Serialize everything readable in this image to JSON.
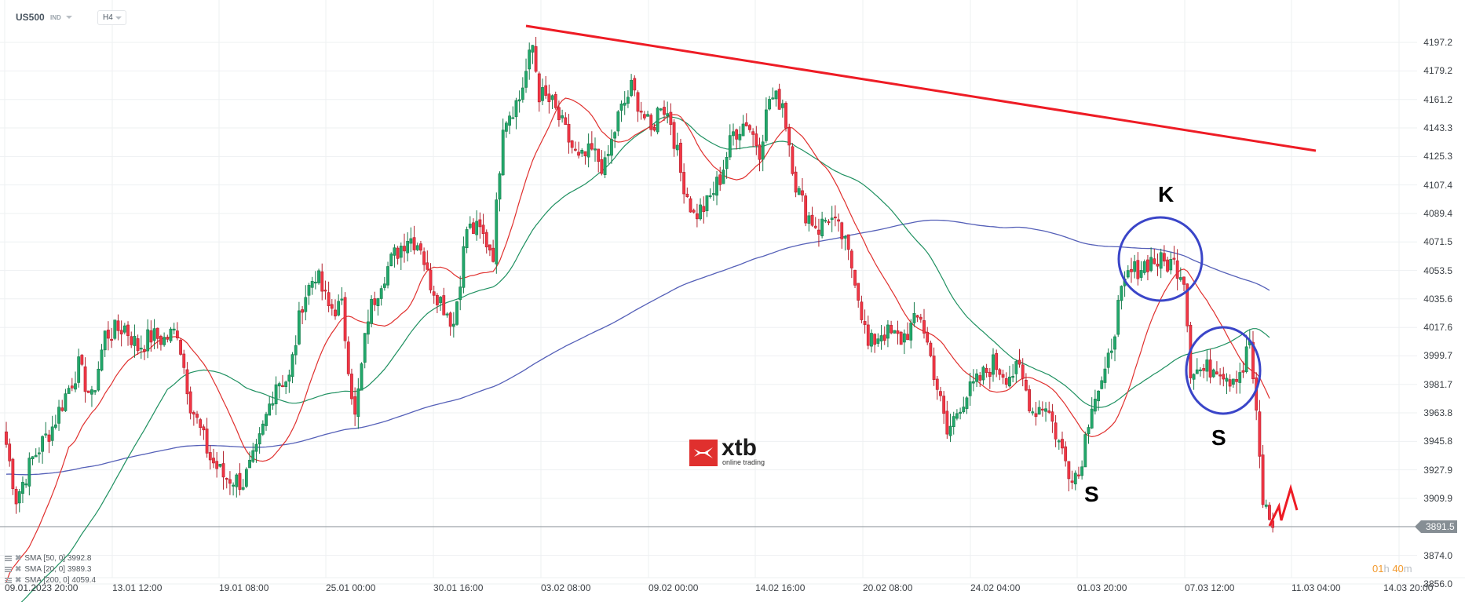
{
  "header": {
    "symbol": "US500",
    "symbol_type": "IND",
    "timeframe": "H4"
  },
  "price_axis": {
    "labels": [
      "4197.2",
      "4179.2",
      "4161.2",
      "4143.3",
      "4125.3",
      "4107.4",
      "4089.4",
      "4071.5",
      "4053.5",
      "4035.6",
      "4017.6",
      "3999.7",
      "3981.7",
      "3963.8",
      "3945.8",
      "3927.9",
      "3909.9",
      "3874.0",
      "3856.0"
    ],
    "current_price": "3891.5"
  },
  "time_axis": {
    "labels": [
      "09.01.2023  20:00",
      "13.01  12:00",
      "19.01  08:00",
      "25.01  00:00",
      "30.01  16:00",
      "03.02  08:00",
      "09.02  00:00",
      "14.02  16:00",
      "20.02  08:00",
      "24.02  04:00",
      "01.03  20:00",
      "07.03  12:00",
      "11.03  04:00",
      "14.03  20:00"
    ]
  },
  "countdown": {
    "hours": "01",
    "h_unit": "h",
    "minutes": "40",
    "m_unit": "m"
  },
  "indicators": [
    {
      "label": "SMA  [50,  0] 3992.8"
    },
    {
      "label": "SMA  [20,  0] 3989.3"
    },
    {
      "label": "SMA  [200,  0] 4059.4"
    }
  ],
  "annotations": {
    "k_label": "K",
    "s_left_label": "S",
    "s_right_label": "S"
  },
  "logo": {
    "brand": "xtb",
    "tagline": "online trading"
  },
  "colors": {
    "bull": "#22a86b",
    "bull_edge": "#157a4a",
    "bear": "#f23645",
    "bear_edge": "#b2202c",
    "sma20": "#e0302e",
    "sma50": "#1e9060",
    "sma200": "#5560b8",
    "trendline": "#ee1c25",
    "circle": "#3a45c8",
    "grid": "#eef0f2",
    "price_line": "#868e94"
  },
  "chart_data": {
    "type": "candlestick",
    "title": "US500 H4",
    "xlabel": "",
    "ylabel": "",
    "ylim": [
      3856.0,
      4197.2
    ],
    "grid": true,
    "legend_position": "bottom-left",
    "current_price": 3891.5,
    "waypoints_close": [
      [
        0,
        3944
      ],
      [
        3,
        3910
      ],
      [
        8,
        3935
      ],
      [
        14,
        3955
      ],
      [
        18,
        3975
      ],
      [
        22,
        3993
      ],
      [
        26,
        3972
      ],
      [
        30,
        4013
      ],
      [
        36,
        4018
      ],
      [
        40,
        4005
      ],
      [
        44,
        4012
      ],
      [
        48,
        4010
      ],
      [
        52,
        4016
      ],
      [
        56,
        3970
      ],
      [
        62,
        3935
      ],
      [
        66,
        3924
      ],
      [
        72,
        3920
      ],
      [
        76,
        3938
      ],
      [
        82,
        3984
      ],
      [
        86,
        3985
      ],
      [
        90,
        4034
      ],
      [
        94,
        4052
      ],
      [
        98,
        4030
      ],
      [
        102,
        4030
      ],
      [
        106,
        3960
      ],
      [
        110,
        4025
      ],
      [
        114,
        4048
      ],
      [
        118,
        4063
      ],
      [
        122,
        4075
      ],
      [
        126,
        4070
      ],
      [
        128,
        4050
      ],
      [
        132,
        4035
      ],
      [
        136,
        4020
      ],
      [
        140,
        4080
      ],
      [
        144,
        4078
      ],
      [
        148,
        4065
      ],
      [
        151,
        4148
      ],
      [
        156,
        4162
      ],
      [
        160,
        4195
      ],
      [
        162,
        4165
      ],
      [
        166,
        4158
      ],
      [
        170,
        4140
      ],
      [
        174,
        4122
      ],
      [
        178,
        4128
      ],
      [
        182,
        4118
      ],
      [
        186,
        4150
      ],
      [
        190,
        4168
      ],
      [
        192,
        4160
      ],
      [
        196,
        4140
      ],
      [
        199,
        4160
      ],
      [
        202,
        4148
      ],
      [
        205,
        4115
      ],
      [
        209,
        4088
      ],
      [
        213,
        4095
      ],
      [
        217,
        4112
      ],
      [
        221,
        4140
      ],
      [
        225,
        4148
      ],
      [
        229,
        4130
      ],
      [
        232,
        4162
      ],
      [
        236,
        4160
      ],
      [
        240,
        4108
      ],
      [
        243,
        4090
      ],
      [
        247,
        4080
      ],
      [
        250,
        4088
      ],
      [
        254,
        4075
      ],
      [
        258,
        4050
      ],
      [
        262,
        4005
      ],
      [
        266,
        4015
      ],
      [
        272,
        4010
      ],
      [
        278,
        4025
      ],
      [
        282,
        3990
      ],
      [
        286,
        3950
      ],
      [
        290,
        3970
      ],
      [
        296,
        3985
      ],
      [
        300,
        3995
      ],
      [
        304,
        3988
      ],
      [
        308,
        3990
      ],
      [
        312,
        3965
      ],
      [
        316,
        3970
      ],
      [
        320,
        3945
      ],
      [
        323,
        3928
      ],
      [
        326,
        3925
      ],
      [
        330,
        3972
      ],
      [
        334,
        3985
      ],
      [
        338,
        4030
      ],
      [
        341,
        4050
      ],
      [
        344,
        4055
      ],
      [
        348,
        4060
      ],
      [
        352,
        4058
      ],
      [
        355,
        4058
      ],
      [
        358,
        4050
      ],
      [
        360,
        3992
      ],
      [
        364,
        3990
      ],
      [
        368,
        3994
      ],
      [
        372,
        3986
      ],
      [
        376,
        3992
      ],
      [
        378,
        4010
      ],
      [
        380,
        3960
      ],
      [
        382,
        3908
      ],
      [
        385,
        3891.5
      ]
    ],
    "sma_values_last": {
      "SMA50": 3992.8,
      "SMA20": 3989.3,
      "SMA200": 4059.4
    },
    "trendline": {
      "from": {
        "time_index": 160,
        "price": 4197.2
      },
      "to": {
        "time_index": 325,
        "price": 4128.0
      }
    },
    "annotations": [
      {
        "text": "K",
        "near_price": 4060,
        "shape": "circle"
      },
      {
        "text": "S",
        "near_price": 3925
      },
      {
        "text": "S",
        "near_price": 3990,
        "shape": "circle"
      }
    ]
  }
}
